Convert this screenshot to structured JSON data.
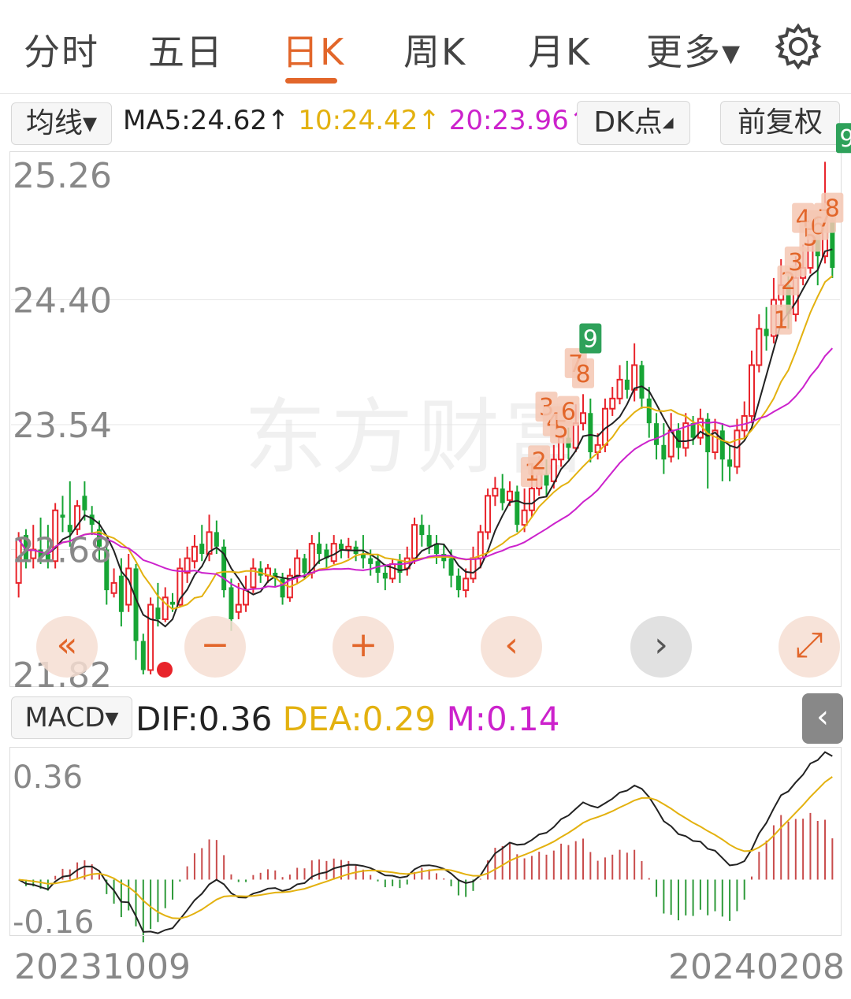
{
  "tabs": [
    {
      "label": "分时",
      "active": false
    },
    {
      "label": "五日",
      "active": false
    },
    {
      "label": "日K",
      "active": true
    },
    {
      "label": "周K",
      "active": false
    },
    {
      "label": "月K",
      "active": false
    },
    {
      "label": "更多▾",
      "active": false
    }
  ],
  "toolbar": {
    "indicator_select": "均线▾",
    "ma5_label": "MA5:24.62↑",
    "ma10_label": "10:24.42↑",
    "ma20_label": "20:23.96↑",
    "dk_button": "DK点",
    "adjust_button": "前复权"
  },
  "watermark": "东方财富",
  "nav": {
    "fast_back": "«",
    "zoom_out": "−",
    "zoom_in": "+",
    "prev": "‹",
    "next": "›",
    "fullscreen": "⤢"
  },
  "macd": {
    "select": "MACD▾",
    "dif_label": "DIF:0.36",
    "dea_label": "DEA:0.29",
    "m_label": "M:0.14",
    "side_button": "‹"
  },
  "dates": {
    "start": "20231009",
    "end": "20240208"
  },
  "colors": {
    "up": "#e8232a",
    "down": "#17a535",
    "ma5": "#222222",
    "ma10": "#e3b10f",
    "ma20": "#cc22cc",
    "accent": "#e2662a",
    "tag_fill": "#f4c7b3",
    "tag_text": "#e2662a",
    "tag9_fill": "#2ea15a"
  },
  "chart_data": [
    {
      "type": "candlestick",
      "y_ticks": [
        "25.26",
        "24.40",
        "23.54",
        "22.68",
        "21.82"
      ],
      "ylim": [
        21.82,
        25.26
      ],
      "x_range": [
        "20231009",
        "20240208"
      ],
      "grid": true,
      "candles": [
        [
          22.45,
          22.75,
          22.35,
          22.8
        ],
        [
          22.78,
          22.6,
          22.55,
          22.82
        ],
        [
          22.62,
          22.68,
          22.55,
          22.85
        ],
        [
          22.68,
          22.62,
          22.58,
          22.9
        ],
        [
          22.65,
          22.6,
          22.55,
          22.85
        ],
        [
          22.6,
          22.95,
          22.55,
          23.0
        ],
        [
          22.92,
          22.9,
          22.8,
          23.05
        ],
        [
          22.85,
          22.8,
          22.7,
          23.15
        ],
        [
          22.82,
          22.98,
          22.78,
          23.02
        ],
        [
          23.05,
          22.95,
          22.88,
          23.15
        ],
        [
          22.92,
          22.85,
          22.78,
          22.98
        ],
        [
          22.82,
          22.7,
          22.6,
          22.88
        ],
        [
          22.68,
          22.4,
          22.3,
          22.75
        ],
        [
          22.38,
          22.45,
          22.35,
          22.55
        ],
        [
          22.5,
          22.25,
          22.15,
          22.62
        ],
        [
          22.3,
          22.55,
          22.25,
          22.65
        ],
        [
          22.55,
          22.05,
          21.92,
          22.58
        ],
        [
          22.05,
          21.85,
          21.82,
          22.1
        ],
        [
          21.85,
          22.3,
          21.82,
          22.35
        ],
        [
          22.28,
          22.2,
          22.15,
          22.45
        ],
        [
          22.2,
          22.35,
          22.18,
          22.42
        ],
        [
          22.32,
          22.3,
          22.25,
          22.38
        ],
        [
          22.3,
          22.55,
          22.28,
          22.62
        ],
        [
          22.52,
          22.62,
          22.45,
          22.7
        ],
        [
          22.6,
          22.7,
          22.55,
          22.78
        ],
        [
          22.72,
          22.65,
          22.6,
          22.85
        ],
        [
          22.65,
          22.8,
          22.6,
          22.92
        ],
        [
          22.8,
          22.7,
          22.65,
          22.88
        ],
        [
          22.7,
          22.4,
          22.35,
          22.75
        ],
        [
          22.42,
          22.2,
          22.12,
          22.48
        ],
        [
          22.25,
          22.3,
          22.2,
          22.45
        ],
        [
          22.3,
          22.4,
          22.25,
          22.5
        ],
        [
          22.42,
          22.55,
          22.38,
          22.62
        ],
        [
          22.55,
          22.5,
          22.45,
          22.6
        ],
        [
          22.5,
          22.55,
          22.45,
          22.58
        ],
        [
          22.52,
          22.48,
          22.42,
          22.55
        ],
        [
          22.48,
          22.35,
          22.3,
          22.52
        ],
        [
          22.35,
          22.5,
          22.32,
          22.55
        ],
        [
          22.5,
          22.62,
          22.45,
          22.68
        ],
        [
          22.62,
          22.52,
          22.48,
          22.65
        ],
        [
          22.52,
          22.72,
          22.48,
          22.78
        ],
        [
          22.72,
          22.65,
          22.58,
          22.8
        ],
        [
          22.68,
          22.62,
          22.55,
          22.72
        ],
        [
          22.6,
          22.72,
          22.58,
          22.78
        ],
        [
          22.72,
          22.68,
          22.62,
          22.75
        ],
        [
          22.68,
          22.7,
          22.62,
          22.76
        ],
        [
          22.7,
          22.65,
          22.6,
          22.74
        ],
        [
          22.65,
          22.62,
          22.55,
          22.78
        ],
        [
          22.62,
          22.58,
          22.5,
          22.68
        ],
        [
          22.6,
          22.52,
          22.45,
          22.65
        ],
        [
          22.52,
          22.48,
          22.4,
          22.58
        ],
        [
          22.48,
          22.58,
          22.45,
          22.62
        ],
        [
          22.6,
          22.52,
          22.45,
          22.65
        ],
        [
          22.55,
          22.62,
          22.5,
          22.7
        ],
        [
          22.62,
          22.85,
          22.58,
          22.9
        ],
        [
          22.85,
          22.78,
          22.7,
          22.92
        ],
        [
          22.78,
          22.7,
          22.65,
          22.85
        ],
        [
          22.72,
          22.65,
          22.58,
          22.78
        ],
        [
          22.65,
          22.6,
          22.55,
          22.72
        ],
        [
          22.62,
          22.5,
          22.42,
          22.68
        ],
        [
          22.5,
          22.4,
          22.35,
          22.55
        ],
        [
          22.4,
          22.48,
          22.35,
          22.55
        ],
        [
          22.48,
          22.62,
          22.45,
          22.7
        ],
        [
          22.62,
          22.8,
          22.55,
          22.85
        ],
        [
          22.8,
          23.05,
          22.75,
          23.1
        ],
        [
          23.05,
          23.1,
          22.98,
          23.18
        ],
        [
          23.1,
          23.0,
          22.95,
          23.2
        ],
        [
          23.02,
          23.08,
          22.98,
          23.15
        ],
        [
          23.08,
          22.85,
          22.8,
          23.12
        ],
        [
          22.85,
          22.95,
          22.8,
          23.1
        ],
        [
          22.95,
          23.1,
          22.9,
          23.22
        ],
        [
          23.1,
          23.2,
          23.05,
          23.32
        ],
        [
          23.2,
          23.12,
          23.05,
          23.3
        ],
        [
          23.15,
          23.3,
          23.1,
          23.4
        ],
        [
          23.3,
          23.45,
          23.25,
          23.55
        ],
        [
          23.45,
          23.38,
          23.3,
          23.52
        ],
        [
          23.38,
          23.55,
          23.35,
          23.68
        ],
        [
          23.55,
          23.62,
          23.5,
          23.75
        ],
        [
          23.62,
          23.35,
          23.28,
          23.72
        ],
        [
          23.35,
          23.4,
          23.3,
          23.48
        ],
        [
          23.4,
          23.65,
          23.35,
          23.72
        ],
        [
          23.65,
          23.72,
          23.6,
          23.8
        ],
        [
          23.72,
          23.85,
          23.68,
          23.95
        ],
        [
          23.85,
          23.78,
          23.72,
          23.98
        ],
        [
          23.78,
          23.95,
          23.7,
          24.1
        ],
        [
          23.95,
          23.72,
          23.65,
          23.98
        ],
        [
          23.72,
          23.55,
          23.45,
          23.8
        ],
        [
          23.55,
          23.4,
          23.3,
          23.62
        ],
        [
          23.4,
          23.3,
          23.2,
          23.55
        ],
        [
          23.32,
          23.5,
          23.28,
          23.62
        ],
        [
          23.5,
          23.38,
          23.3,
          23.55
        ],
        [
          23.38,
          23.55,
          23.32,
          23.62
        ],
        [
          23.55,
          23.45,
          23.4,
          23.6
        ],
        [
          23.45,
          23.58,
          23.4,
          23.65
        ],
        [
          23.58,
          23.35,
          23.1,
          23.62
        ],
        [
          23.35,
          23.5,
          23.3,
          23.58
        ],
        [
          23.5,
          23.3,
          23.15,
          23.55
        ],
        [
          23.3,
          23.25,
          23.15,
          23.4
        ],
        [
          23.25,
          23.5,
          23.2,
          23.58
        ],
        [
          23.5,
          23.6,
          23.45,
          23.7
        ],
        [
          23.6,
          23.95,
          23.55,
          24.05
        ],
        [
          23.95,
          24.2,
          23.9,
          24.3
        ],
        [
          24.2,
          24.15,
          24.05,
          24.35
        ],
        [
          24.15,
          24.4,
          24.1,
          24.55
        ],
        [
          24.4,
          24.5,
          24.35,
          24.68
        ],
        [
          24.5,
          24.3,
          24.2,
          24.58
        ],
        [
          24.3,
          24.55,
          24.25,
          24.7
        ],
        [
          24.55,
          24.62,
          24.5,
          24.78
        ],
        [
          24.62,
          24.85,
          24.58,
          24.95
        ],
        [
          24.85,
          24.7,
          24.5,
          24.98
        ],
        [
          24.7,
          24.95,
          24.65,
          25.35
        ],
        [
          24.95,
          24.62,
          24.55,
          25.0
        ]
      ]
    },
    {
      "type": "line+bar",
      "name": "MACD",
      "y_ticks": [
        "0.36",
        "-0.16"
      ],
      "ylim": [
        -0.16,
        0.36
      ],
      "x_range": [
        "20231009",
        "20240208"
      ]
    }
  ]
}
